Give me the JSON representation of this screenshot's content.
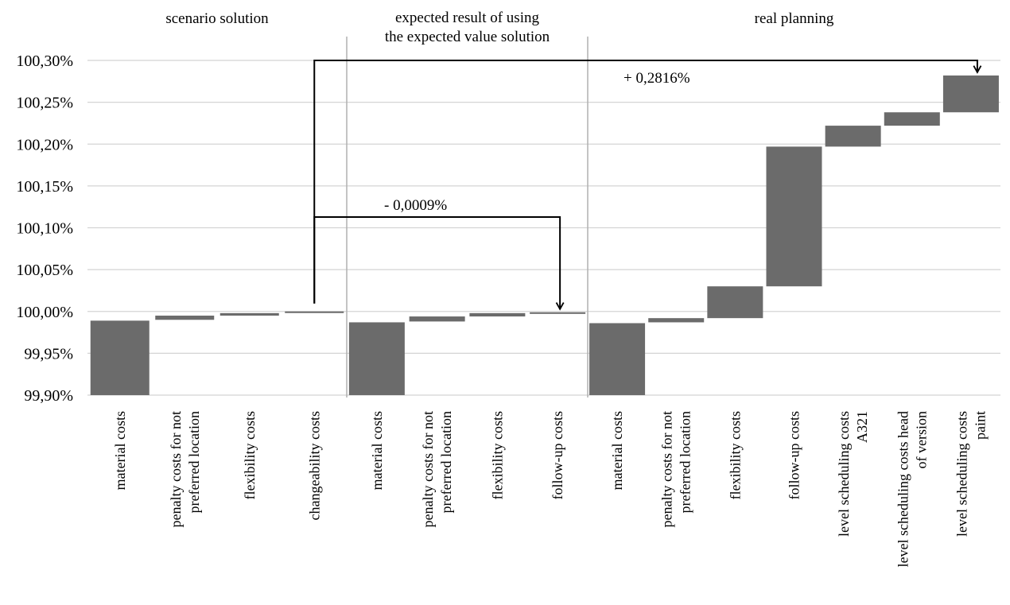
{
  "chart_data": {
    "type": "bar",
    "subtype": "waterfall",
    "ylim": [
      99.9,
      100.3
    ],
    "yticks": [
      "99,90%",
      "99,95%",
      "100,00%",
      "100,05%",
      "100,10%",
      "100,15%",
      "100,20%",
      "100,25%",
      "100,30%"
    ],
    "grid": true,
    "colors": {
      "bar": "#6b6b6b",
      "grid": "#d4d4d4",
      "separator": "#b0b0b0",
      "arrow": "#000000"
    },
    "panels": [
      {
        "title_lines": [
          "scenario solution"
        ],
        "categories": [
          [
            "material costs"
          ],
          [
            "penalty costs for not",
            "preferred location"
          ],
          [
            "flexibility costs"
          ],
          [
            "changeability costs"
          ]
        ],
        "bars": [
          {
            "low": 99.9,
            "high": 99.989
          },
          {
            "low": 99.99,
            "high": 99.995
          },
          {
            "low": 99.995,
            "high": 99.998
          },
          {
            "low": 99.9995,
            "high": 100.0
          }
        ]
      },
      {
        "title_lines": [
          "expected result of using",
          "the expected value solution"
        ],
        "categories": [
          [
            "material costs"
          ],
          [
            "penalty costs for not",
            "preferred location"
          ],
          [
            "flexibility costs"
          ],
          [
            "follow-up costs"
          ]
        ],
        "bars": [
          {
            "low": 99.9,
            "high": 99.987
          },
          {
            "low": 99.988,
            "high": 99.994
          },
          {
            "low": 99.994,
            "high": 99.998
          },
          {
            "low": 99.998,
            "high": 99.999
          }
        ]
      },
      {
        "title_lines": [
          "real planning"
        ],
        "categories": [
          [
            "material costs"
          ],
          [
            "penalty costs for not",
            "preferred location"
          ],
          [
            "flexibility costs"
          ],
          [
            "follow-up costs"
          ],
          [
            "level scheduling costs",
            "A321"
          ],
          [
            "level scheduling costs head",
            "of version"
          ],
          [
            "level scheduling costs",
            "paint"
          ]
        ],
        "bars": [
          {
            "low": 99.9,
            "high": 99.986
          },
          {
            "low": 99.987,
            "high": 99.992
          },
          {
            "low": 99.992,
            "high": 100.03
          },
          {
            "low": 100.03,
            "high": 100.197
          },
          {
            "low": 100.197,
            "high": 100.222
          },
          {
            "low": 100.222,
            "high": 100.238
          },
          {
            "low": 100.238,
            "high": 100.282
          }
        ]
      }
    ],
    "annotations": [
      {
        "label": "- 0,0009%",
        "from": 100.0,
        "to": 99.999
      },
      {
        "label": "+ 0,2816%",
        "from": 100.0,
        "to": 100.282
      }
    ]
  }
}
